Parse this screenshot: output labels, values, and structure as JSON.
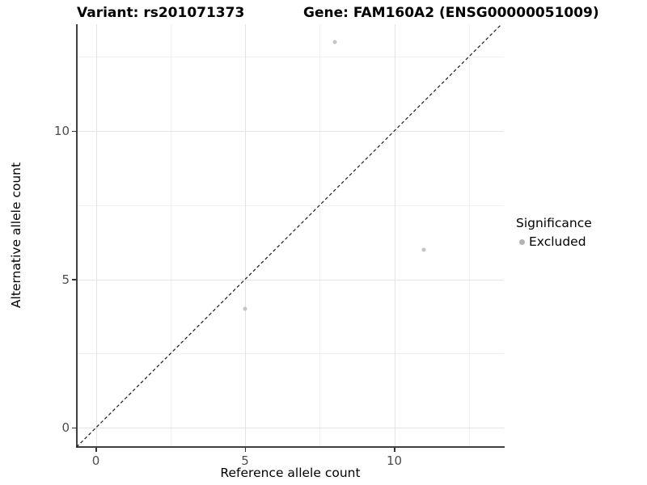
{
  "chart_data": {
    "type": "scatter",
    "titles": {
      "left": "Variant: rs201071373",
      "right": "Gene: FAM160A2 (ENSG00000051009)"
    },
    "xlabel": "Reference allele count",
    "ylabel": "Alternative allele count",
    "x_ticks": [
      0,
      5,
      10
    ],
    "y_ticks": [
      0,
      5,
      10
    ],
    "x_minor_gridlines": [
      2.5,
      7.5,
      12.5
    ],
    "y_minor_gridlines": [
      2.5,
      7.5,
      12.5
    ],
    "xlim": [
      -0.65,
      13.67
    ],
    "ylim": [
      -0.65,
      13.6
    ],
    "grid": true,
    "series": [
      {
        "name": "Excluded",
        "color": "#c4c4c4",
        "points": [
          {
            "x": 5,
            "y": 4
          },
          {
            "x": 8,
            "y": 13
          },
          {
            "x": 11,
            "y": 6
          }
        ]
      }
    ],
    "reference_line": {
      "type": "identity",
      "slope": 1,
      "intercept": 0,
      "style": "dashed",
      "color": "#1a1a1a"
    },
    "legend": {
      "title": "Significance",
      "position": "right",
      "items": [
        {
          "label": "Excluded",
          "color": "#b3b3b3",
          "marker": "circle"
        }
      ]
    }
  },
  "colors": {
    "background": "#ffffff",
    "major_grid": "#e4e4e4",
    "minor_grid": "#f0f0f0",
    "axis_line": "#3f3f3f",
    "tick_text": "#4d4d4d",
    "title_text": "#000000"
  }
}
